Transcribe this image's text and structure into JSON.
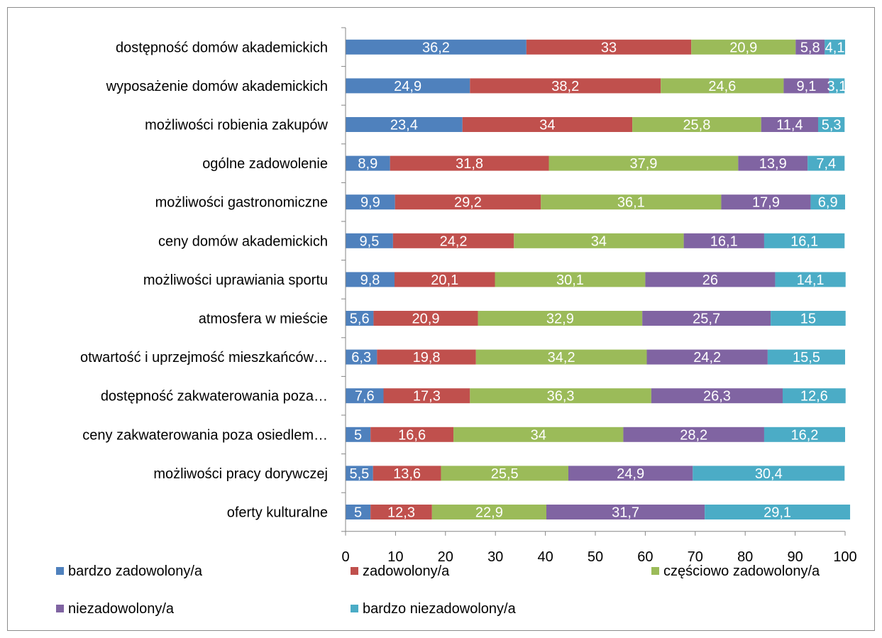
{
  "chart_data": {
    "type": "bar",
    "orientation": "horizontal",
    "stacked": true,
    "categories": [
      "dostępność domów akademickich",
      "wyposażenie domów akademickich",
      "możliwości robienia zakupów",
      "ogólne zadowolenie",
      "możliwości gastronomiczne",
      "ceny domów akademickich",
      "możliwości uprawiania sportu",
      "atmosfera w mieście",
      "otwartość i uprzejmość mieszkańców…",
      "dostępność zakwaterowania poza…",
      "ceny zakwaterowania poza osiedlem…",
      "możliwości pracy dorywczej",
      "oferty kulturalne"
    ],
    "series": [
      {
        "name": "bardzo zadowolony/a",
        "color": "#4F81BD",
        "values": [
          36.2,
          24.9,
          23.4,
          8.9,
          9.9,
          9.5,
          9.8,
          5.6,
          6.3,
          7.6,
          5,
          5.5,
          5
        ],
        "labels": [
          "36,2",
          "24,9",
          "23,4",
          "8,9",
          "9,9",
          "9,5",
          "9,8",
          "5,6",
          "6,3",
          "7,6",
          "5",
          "5,5",
          "5"
        ]
      },
      {
        "name": "zadowolony/a",
        "color": "#C0504D",
        "values": [
          33,
          38.2,
          34,
          31.8,
          29.2,
          24.2,
          20.1,
          20.9,
          19.8,
          17.3,
          16.6,
          13.6,
          12.3
        ],
        "labels": [
          "33",
          "38,2",
          "34",
          "31,8",
          "29,2",
          "24,2",
          "20,1",
          "20,9",
          "19,8",
          "17,3",
          "16,6",
          "13,6",
          "12,3"
        ]
      },
      {
        "name": "częściowo zadowolony/a",
        "color": "#9BBB59",
        "values": [
          20.9,
          24.6,
          25.8,
          37.9,
          36.1,
          34,
          30.1,
          32.9,
          34.2,
          36.3,
          34,
          25.5,
          22.9
        ],
        "labels": [
          "20,9",
          "24,6",
          "25,8",
          "37,9",
          "36,1",
          "34",
          "30,1",
          "32,9",
          "34,2",
          "36,3",
          "34",
          "25,5",
          "22,9"
        ]
      },
      {
        "name": "niezadowolony/a",
        "color": "#8064A2",
        "values": [
          5.8,
          9.1,
          11.4,
          13.9,
          17.9,
          16.1,
          26,
          25.7,
          24.2,
          26.3,
          28.2,
          24.9,
          31.7
        ],
        "labels": [
          "5,8",
          "9,1",
          "11,4",
          "13,9",
          "17,9",
          "16,1",
          "26",
          "25,7",
          "24,2",
          "26,3",
          "28,2",
          "24,9",
          "31,7"
        ]
      },
      {
        "name": "bardzo niezadowolony/a",
        "color": "#4BACC6",
        "values": [
          4.1,
          3.1,
          5.3,
          7.4,
          6.9,
          16.1,
          14.1,
          15,
          15.5,
          12.6,
          16.2,
          30.4,
          29.1
        ],
        "labels": [
          "4,1",
          "3,1",
          "5,3",
          "7,4",
          "6,9",
          "16,1",
          "14,1",
          "15",
          "15,5",
          "12,6",
          "16,2",
          "30,4",
          "29,1"
        ]
      }
    ],
    "xlim": [
      0,
      100
    ],
    "xticks": [
      0,
      10,
      20,
      30,
      40,
      50,
      60,
      70,
      80,
      90,
      100
    ],
    "title": "",
    "xlabel": "",
    "ylabel": "",
    "grid": false,
    "legend_position": "bottom"
  }
}
